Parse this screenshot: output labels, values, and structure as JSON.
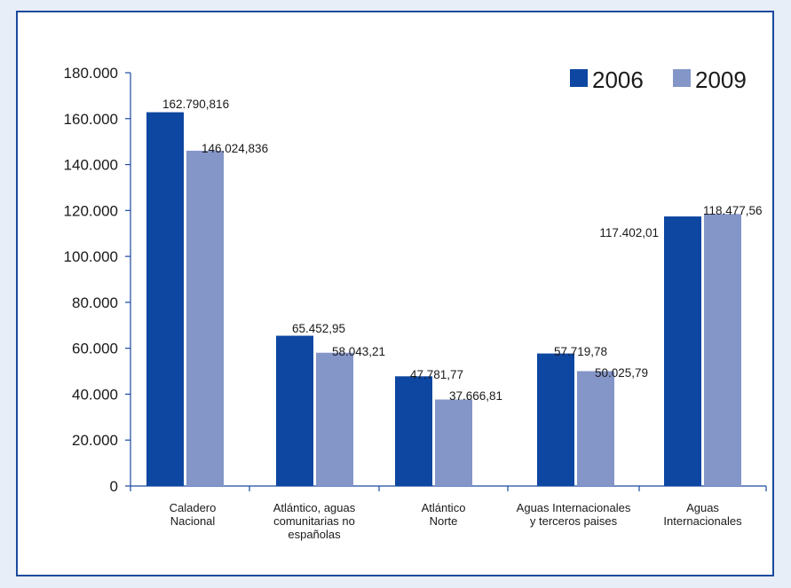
{
  "chart_data": {
    "type": "bar",
    "categories": [
      [
        "Caladero",
        "Nacional"
      ],
      [
        "Atlántico, aguas",
        "comunitarias no",
        "españolas"
      ],
      [
        "Atlántico",
        "Norte"
      ],
      [
        "Aguas Internacionales",
        "y terceros paises"
      ],
      [
        "Aguas",
        "Internacionales"
      ]
    ],
    "series": [
      {
        "name": "2006",
        "color": "#0d47a1",
        "values": [
          162790.816,
          65452.95,
          47781.77,
          57719.78,
          117402.01
        ],
        "labels": [
          "162.790,816",
          "65.452,95",
          "47.781,77",
          "57.719,78",
          "117.402,01"
        ]
      },
      {
        "name": "2009",
        "color": "#8495c8",
        "values": [
          146024.836,
          58043.21,
          37666.81,
          50025.79,
          118477.56
        ],
        "labels": [
          "146.024,836",
          "58.043,21",
          "37.666,81",
          "50.025,79",
          "118.477,56"
        ]
      }
    ],
    "ylim": [
      0,
      180000
    ],
    "yticks": [
      0,
      20000,
      40000,
      60000,
      80000,
      100000,
      120000,
      140000,
      160000,
      180000
    ],
    "ytick_labels": [
      "0",
      "20.000",
      "40.000",
      "60.000",
      "80.000",
      "100.000",
      "120.000",
      "140.000",
      "160.000",
      "180.000"
    ],
    "legend_position": "top-right",
    "grid": false
  }
}
